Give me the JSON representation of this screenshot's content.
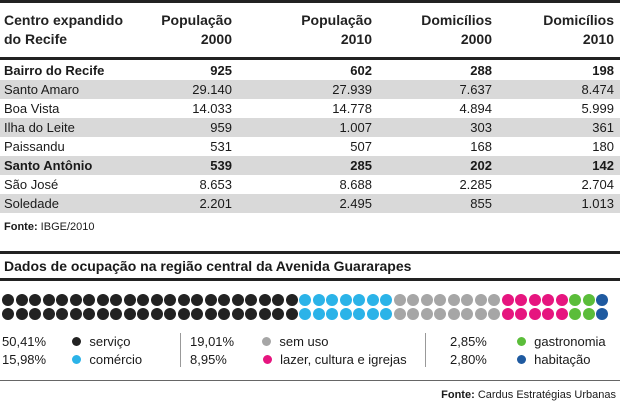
{
  "table": {
    "headers": [
      {
        "line1": "Centro expandido",
        "line2": "do Recife"
      },
      {
        "line1": "População",
        "line2": "2000"
      },
      {
        "line1": "População",
        "line2": "2010"
      },
      {
        "line1": "Domicílios",
        "line2": "2000"
      },
      {
        "line1": "Domicílios",
        "line2": "2010"
      }
    ],
    "rows": [
      {
        "name": "Bairro do Recife",
        "pop2000": "925",
        "pop2010": "602",
        "dom2000": "288",
        "dom2010": "198"
      },
      {
        "name": "Santo Amaro",
        "pop2000": "29.140",
        "pop2010": "27.939",
        "dom2000": "7.637",
        "dom2010": "8.474"
      },
      {
        "name": "Boa Vista",
        "pop2000": "14.033",
        "pop2010": "14.778",
        "dom2000": "4.894",
        "dom2010": "5.999"
      },
      {
        "name": "Ilha do Leite",
        "pop2000": "959",
        "pop2010": "1.007",
        "dom2000": "303",
        "dom2010": "361"
      },
      {
        "name": "Paissandu",
        "pop2000": "531",
        "pop2010": "507",
        "dom2000": "168",
        "dom2010": "180"
      },
      {
        "name": "Santo Antônio",
        "pop2000": "539",
        "pop2010": "285",
        "dom2000": "202",
        "dom2010": "142"
      },
      {
        "name": "São José",
        "pop2000": "8.653",
        "pop2010": "8.688",
        "dom2000": "2.285",
        "dom2010": "2.704"
      },
      {
        "name": "Soledade",
        "pop2000": "2.201",
        "pop2010": "2.495",
        "dom2000": "855",
        "dom2010": "1.013"
      }
    ],
    "source_label": "Fonte:",
    "source_value": "IBGE/2010"
  },
  "occupation": {
    "title": "Dados de ocupação na região central da Avenida Guararapes",
    "dot_colors": {
      "black": "#222222",
      "cyan": "#2bb3e8",
      "gray": "#a6a6a6",
      "magenta": "#e6157f",
      "green": "#5bbd3a",
      "navy": "#1f5aa0"
    },
    "dot_sequence": [
      {
        "color": "black",
        "count": 22
      },
      {
        "color": "cyan",
        "count": 7
      },
      {
        "color": "gray",
        "count": 8
      },
      {
        "color": "magenta",
        "count": 5
      },
      {
        "color": "green",
        "count": 2
      },
      {
        "color": "navy",
        "count": 1
      }
    ],
    "legend": [
      {
        "pct": "50,41%",
        "label": "serviço",
        "color": "black"
      },
      {
        "pct": "15,98%",
        "label": "comércio",
        "color": "cyan"
      },
      {
        "pct": "19,01%",
        "label": "sem uso",
        "color": "gray"
      },
      {
        "pct": "8,95%",
        "label": "lazer, cultura e igrejas",
        "color": "magenta"
      },
      {
        "pct": "2,85%",
        "label": "gastronomia",
        "color": "green"
      },
      {
        "pct": "2,80%",
        "label": "habitação",
        "color": "navy"
      }
    ],
    "source_label": "Fonte:",
    "source_value": "Cardus Estratégias Urbanas"
  }
}
